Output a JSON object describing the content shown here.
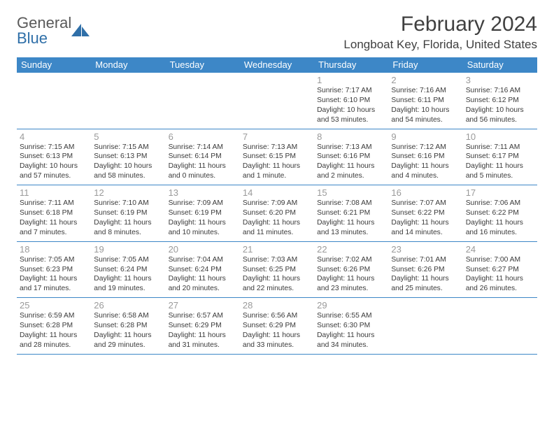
{
  "logo": {
    "text_general": "General",
    "text_blue": "Blue"
  },
  "title": "February 2024",
  "location": "Longboat Key, Florida, United States",
  "colors": {
    "header_bg": "#3d87c7",
    "header_text": "#ffffff",
    "logo_blue": "#2f6fa8",
    "body_text": "#3a3a3a",
    "daynum_text": "#9a9a9a",
    "row_border": "#3d87c7"
  },
  "day_headers": [
    "Sunday",
    "Monday",
    "Tuesday",
    "Wednesday",
    "Thursday",
    "Friday",
    "Saturday"
  ],
  "weeks": [
    [
      null,
      null,
      null,
      null,
      {
        "n": "1",
        "sunrise": "7:17 AM",
        "sunset": "6:10 PM",
        "dl1": "10 hours",
        "dl2": "and 53 minutes."
      },
      {
        "n": "2",
        "sunrise": "7:16 AM",
        "sunset": "6:11 PM",
        "dl1": "10 hours",
        "dl2": "and 54 minutes."
      },
      {
        "n": "3",
        "sunrise": "7:16 AM",
        "sunset": "6:12 PM",
        "dl1": "10 hours",
        "dl2": "and 56 minutes."
      }
    ],
    [
      {
        "n": "4",
        "sunrise": "7:15 AM",
        "sunset": "6:13 PM",
        "dl1": "10 hours",
        "dl2": "and 57 minutes."
      },
      {
        "n": "5",
        "sunrise": "7:15 AM",
        "sunset": "6:13 PM",
        "dl1": "10 hours",
        "dl2": "and 58 minutes."
      },
      {
        "n": "6",
        "sunrise": "7:14 AM",
        "sunset": "6:14 PM",
        "dl1": "11 hours",
        "dl2": "and 0 minutes."
      },
      {
        "n": "7",
        "sunrise": "7:13 AM",
        "sunset": "6:15 PM",
        "dl1": "11 hours",
        "dl2": "and 1 minute."
      },
      {
        "n": "8",
        "sunrise": "7:13 AM",
        "sunset": "6:16 PM",
        "dl1": "11 hours",
        "dl2": "and 2 minutes."
      },
      {
        "n": "9",
        "sunrise": "7:12 AM",
        "sunset": "6:16 PM",
        "dl1": "11 hours",
        "dl2": "and 4 minutes."
      },
      {
        "n": "10",
        "sunrise": "7:11 AM",
        "sunset": "6:17 PM",
        "dl1": "11 hours",
        "dl2": "and 5 minutes."
      }
    ],
    [
      {
        "n": "11",
        "sunrise": "7:11 AM",
        "sunset": "6:18 PM",
        "dl1": "11 hours",
        "dl2": "and 7 minutes."
      },
      {
        "n": "12",
        "sunrise": "7:10 AM",
        "sunset": "6:19 PM",
        "dl1": "11 hours",
        "dl2": "and 8 minutes."
      },
      {
        "n": "13",
        "sunrise": "7:09 AM",
        "sunset": "6:19 PM",
        "dl1": "11 hours",
        "dl2": "and 10 minutes."
      },
      {
        "n": "14",
        "sunrise": "7:09 AM",
        "sunset": "6:20 PM",
        "dl1": "11 hours",
        "dl2": "and 11 minutes."
      },
      {
        "n": "15",
        "sunrise": "7:08 AM",
        "sunset": "6:21 PM",
        "dl1": "11 hours",
        "dl2": "and 13 minutes."
      },
      {
        "n": "16",
        "sunrise": "7:07 AM",
        "sunset": "6:22 PM",
        "dl1": "11 hours",
        "dl2": "and 14 minutes."
      },
      {
        "n": "17",
        "sunrise": "7:06 AM",
        "sunset": "6:22 PM",
        "dl1": "11 hours",
        "dl2": "and 16 minutes."
      }
    ],
    [
      {
        "n": "18",
        "sunrise": "7:05 AM",
        "sunset": "6:23 PM",
        "dl1": "11 hours",
        "dl2": "and 17 minutes."
      },
      {
        "n": "19",
        "sunrise": "7:05 AM",
        "sunset": "6:24 PM",
        "dl1": "11 hours",
        "dl2": "and 19 minutes."
      },
      {
        "n": "20",
        "sunrise": "7:04 AM",
        "sunset": "6:24 PM",
        "dl1": "11 hours",
        "dl2": "and 20 minutes."
      },
      {
        "n": "21",
        "sunrise": "7:03 AM",
        "sunset": "6:25 PM",
        "dl1": "11 hours",
        "dl2": "and 22 minutes."
      },
      {
        "n": "22",
        "sunrise": "7:02 AM",
        "sunset": "6:26 PM",
        "dl1": "11 hours",
        "dl2": "and 23 minutes."
      },
      {
        "n": "23",
        "sunrise": "7:01 AM",
        "sunset": "6:26 PM",
        "dl1": "11 hours",
        "dl2": "and 25 minutes."
      },
      {
        "n": "24",
        "sunrise": "7:00 AM",
        "sunset": "6:27 PM",
        "dl1": "11 hours",
        "dl2": "and 26 minutes."
      }
    ],
    [
      {
        "n": "25",
        "sunrise": "6:59 AM",
        "sunset": "6:28 PM",
        "dl1": "11 hours",
        "dl2": "and 28 minutes."
      },
      {
        "n": "26",
        "sunrise": "6:58 AM",
        "sunset": "6:28 PM",
        "dl1": "11 hours",
        "dl2": "and 29 minutes."
      },
      {
        "n": "27",
        "sunrise": "6:57 AM",
        "sunset": "6:29 PM",
        "dl1": "11 hours",
        "dl2": "and 31 minutes."
      },
      {
        "n": "28",
        "sunrise": "6:56 AM",
        "sunset": "6:29 PM",
        "dl1": "11 hours",
        "dl2": "and 33 minutes."
      },
      {
        "n": "29",
        "sunrise": "6:55 AM",
        "sunset": "6:30 PM",
        "dl1": "11 hours",
        "dl2": "and 34 minutes."
      },
      null,
      null
    ]
  ],
  "labels": {
    "sunrise_prefix": "Sunrise: ",
    "sunset_prefix": "Sunset: ",
    "daylight_prefix": "Daylight: "
  }
}
